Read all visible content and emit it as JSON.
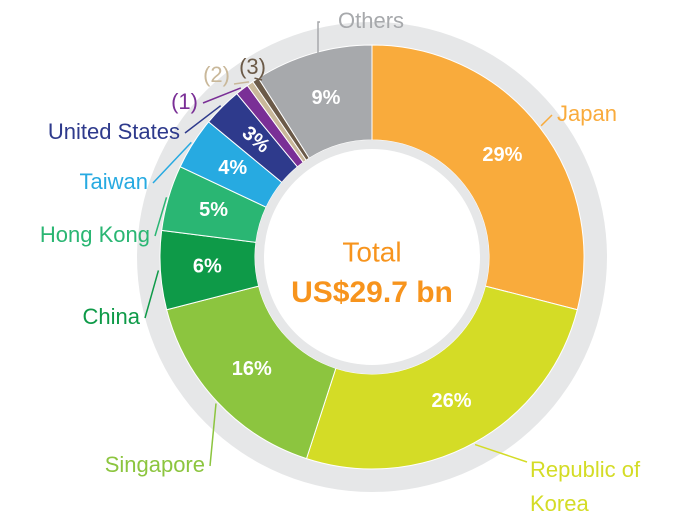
{
  "chart_data": {
    "type": "donut",
    "center_title": "Total",
    "center_value": "US$29.7 bn",
    "categories": [
      "Japan",
      "Republic of Korea",
      "Singapore",
      "China",
      "Hong Kong",
      "Taiwan",
      "United States",
      "(1)",
      "(2)",
      "(3)",
      "Others"
    ],
    "values": [
      29,
      26,
      16,
      6,
      5,
      4,
      3,
      1,
      0.5,
      0.5,
      9
    ],
    "value_labels": [
      "29%",
      "26%",
      "16%",
      "6%",
      "5%",
      "4%",
      "3%",
      null,
      null,
      null,
      "9%"
    ],
    "colors": [
      "#f9ab3c",
      "#d4dc26",
      "#8cc53f",
      "#0e9a48",
      "#2ab673",
      "#27aae1",
      "#2e3a8c",
      "#7a2f96",
      "#c9b89a",
      "#6b5a48",
      "#a7a9ac"
    ]
  }
}
